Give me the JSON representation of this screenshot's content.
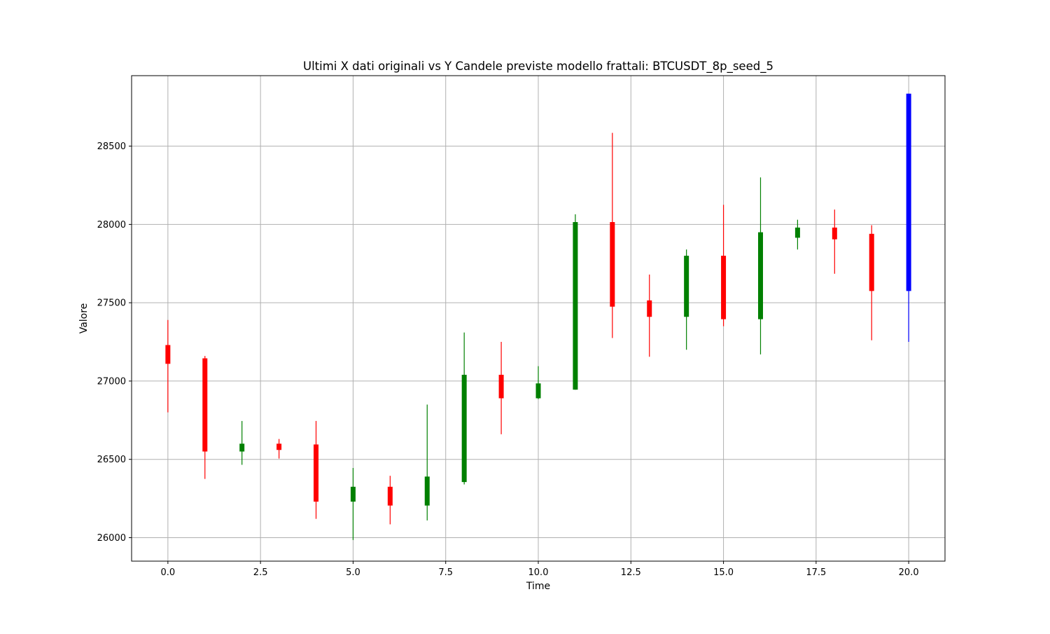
{
  "chart_data": {
    "type": "candlestick",
    "title": "Ultimi X dati originali vs Y Candele previste modello frattali: BTCUSDT_8p_seed_5",
    "xlabel": "Time",
    "ylabel": "Valore",
    "xlim": [
      -0.98,
      20.98
    ],
    "ylim": [
      25850,
      28950
    ],
    "xticks": [
      0.0,
      2.5,
      5.0,
      7.5,
      10.0,
      12.5,
      15.0,
      17.5,
      20.0
    ],
    "xtick_labels": [
      "0.0",
      "2.5",
      "5.0",
      "7.5",
      "10.0",
      "12.5",
      "15.0",
      "17.5",
      "20.0"
    ],
    "yticks": [
      26000,
      26500,
      27000,
      27500,
      28000,
      28500
    ],
    "ytick_labels": [
      "26000",
      "26500",
      "27000",
      "27500",
      "28000",
      "28500"
    ],
    "grid": true,
    "colors": {
      "up": "#008000",
      "down": "#ff0000",
      "forecast": "#0000ff",
      "grid": "#b0b0b0"
    },
    "candles": [
      {
        "t": 0,
        "open": 27230,
        "close": 27110,
        "high": 27390,
        "low": 26800,
        "color": "red"
      },
      {
        "t": 1,
        "open": 27145,
        "close": 26550,
        "high": 27160,
        "low": 26375,
        "color": "red"
      },
      {
        "t": 2,
        "open": 26550,
        "close": 26600,
        "high": 26745,
        "low": 26465,
        "color": "green"
      },
      {
        "t": 3,
        "open": 26600,
        "close": 26560,
        "high": 26630,
        "low": 26505,
        "color": "red"
      },
      {
        "t": 4,
        "open": 26595,
        "close": 26230,
        "high": 26745,
        "low": 26120,
        "color": "red"
      },
      {
        "t": 5,
        "open": 26230,
        "close": 26325,
        "high": 26445,
        "low": 25985,
        "color": "green"
      },
      {
        "t": 6,
        "open": 26325,
        "close": 26205,
        "high": 26395,
        "low": 26085,
        "color": "red"
      },
      {
        "t": 7,
        "open": 26205,
        "close": 26390,
        "high": 26850,
        "low": 26110,
        "color": "green"
      },
      {
        "t": 8,
        "open": 26355,
        "close": 27040,
        "high": 27310,
        "low": 26340,
        "color": "green"
      },
      {
        "t": 9,
        "open": 27040,
        "close": 26890,
        "high": 27250,
        "low": 26660,
        "color": "red"
      },
      {
        "t": 10,
        "open": 26890,
        "close": 26985,
        "high": 27095,
        "low": 26885,
        "color": "green"
      },
      {
        "t": 11,
        "open": 26945,
        "close": 28015,
        "high": 28065,
        "low": 26945,
        "color": "green"
      },
      {
        "t": 12,
        "open": 28015,
        "close": 27475,
        "high": 28585,
        "low": 27275,
        "color": "red"
      },
      {
        "t": 13,
        "open": 27515,
        "close": 27410,
        "high": 27680,
        "low": 27155,
        "color": "red"
      },
      {
        "t": 14,
        "open": 27410,
        "close": 27800,
        "high": 27840,
        "low": 27200,
        "color": "green"
      },
      {
        "t": 15,
        "open": 27800,
        "close": 27395,
        "high": 28125,
        "low": 27350,
        "color": "red"
      },
      {
        "t": 16,
        "open": 27395,
        "close": 27950,
        "high": 28300,
        "low": 27170,
        "color": "green"
      },
      {
        "t": 17,
        "open": 27915,
        "close": 27980,
        "high": 28030,
        "low": 27840,
        "color": "green"
      },
      {
        "t": 18,
        "open": 27980,
        "close": 27905,
        "high": 28095,
        "low": 27685,
        "color": "red"
      },
      {
        "t": 19,
        "open": 27940,
        "close": 27575,
        "high": 27995,
        "low": 27260,
        "color": "red"
      },
      {
        "t": 20,
        "open": 27575,
        "close": 28835,
        "high": 28835,
        "low": 27250,
        "color": "blue"
      }
    ]
  }
}
